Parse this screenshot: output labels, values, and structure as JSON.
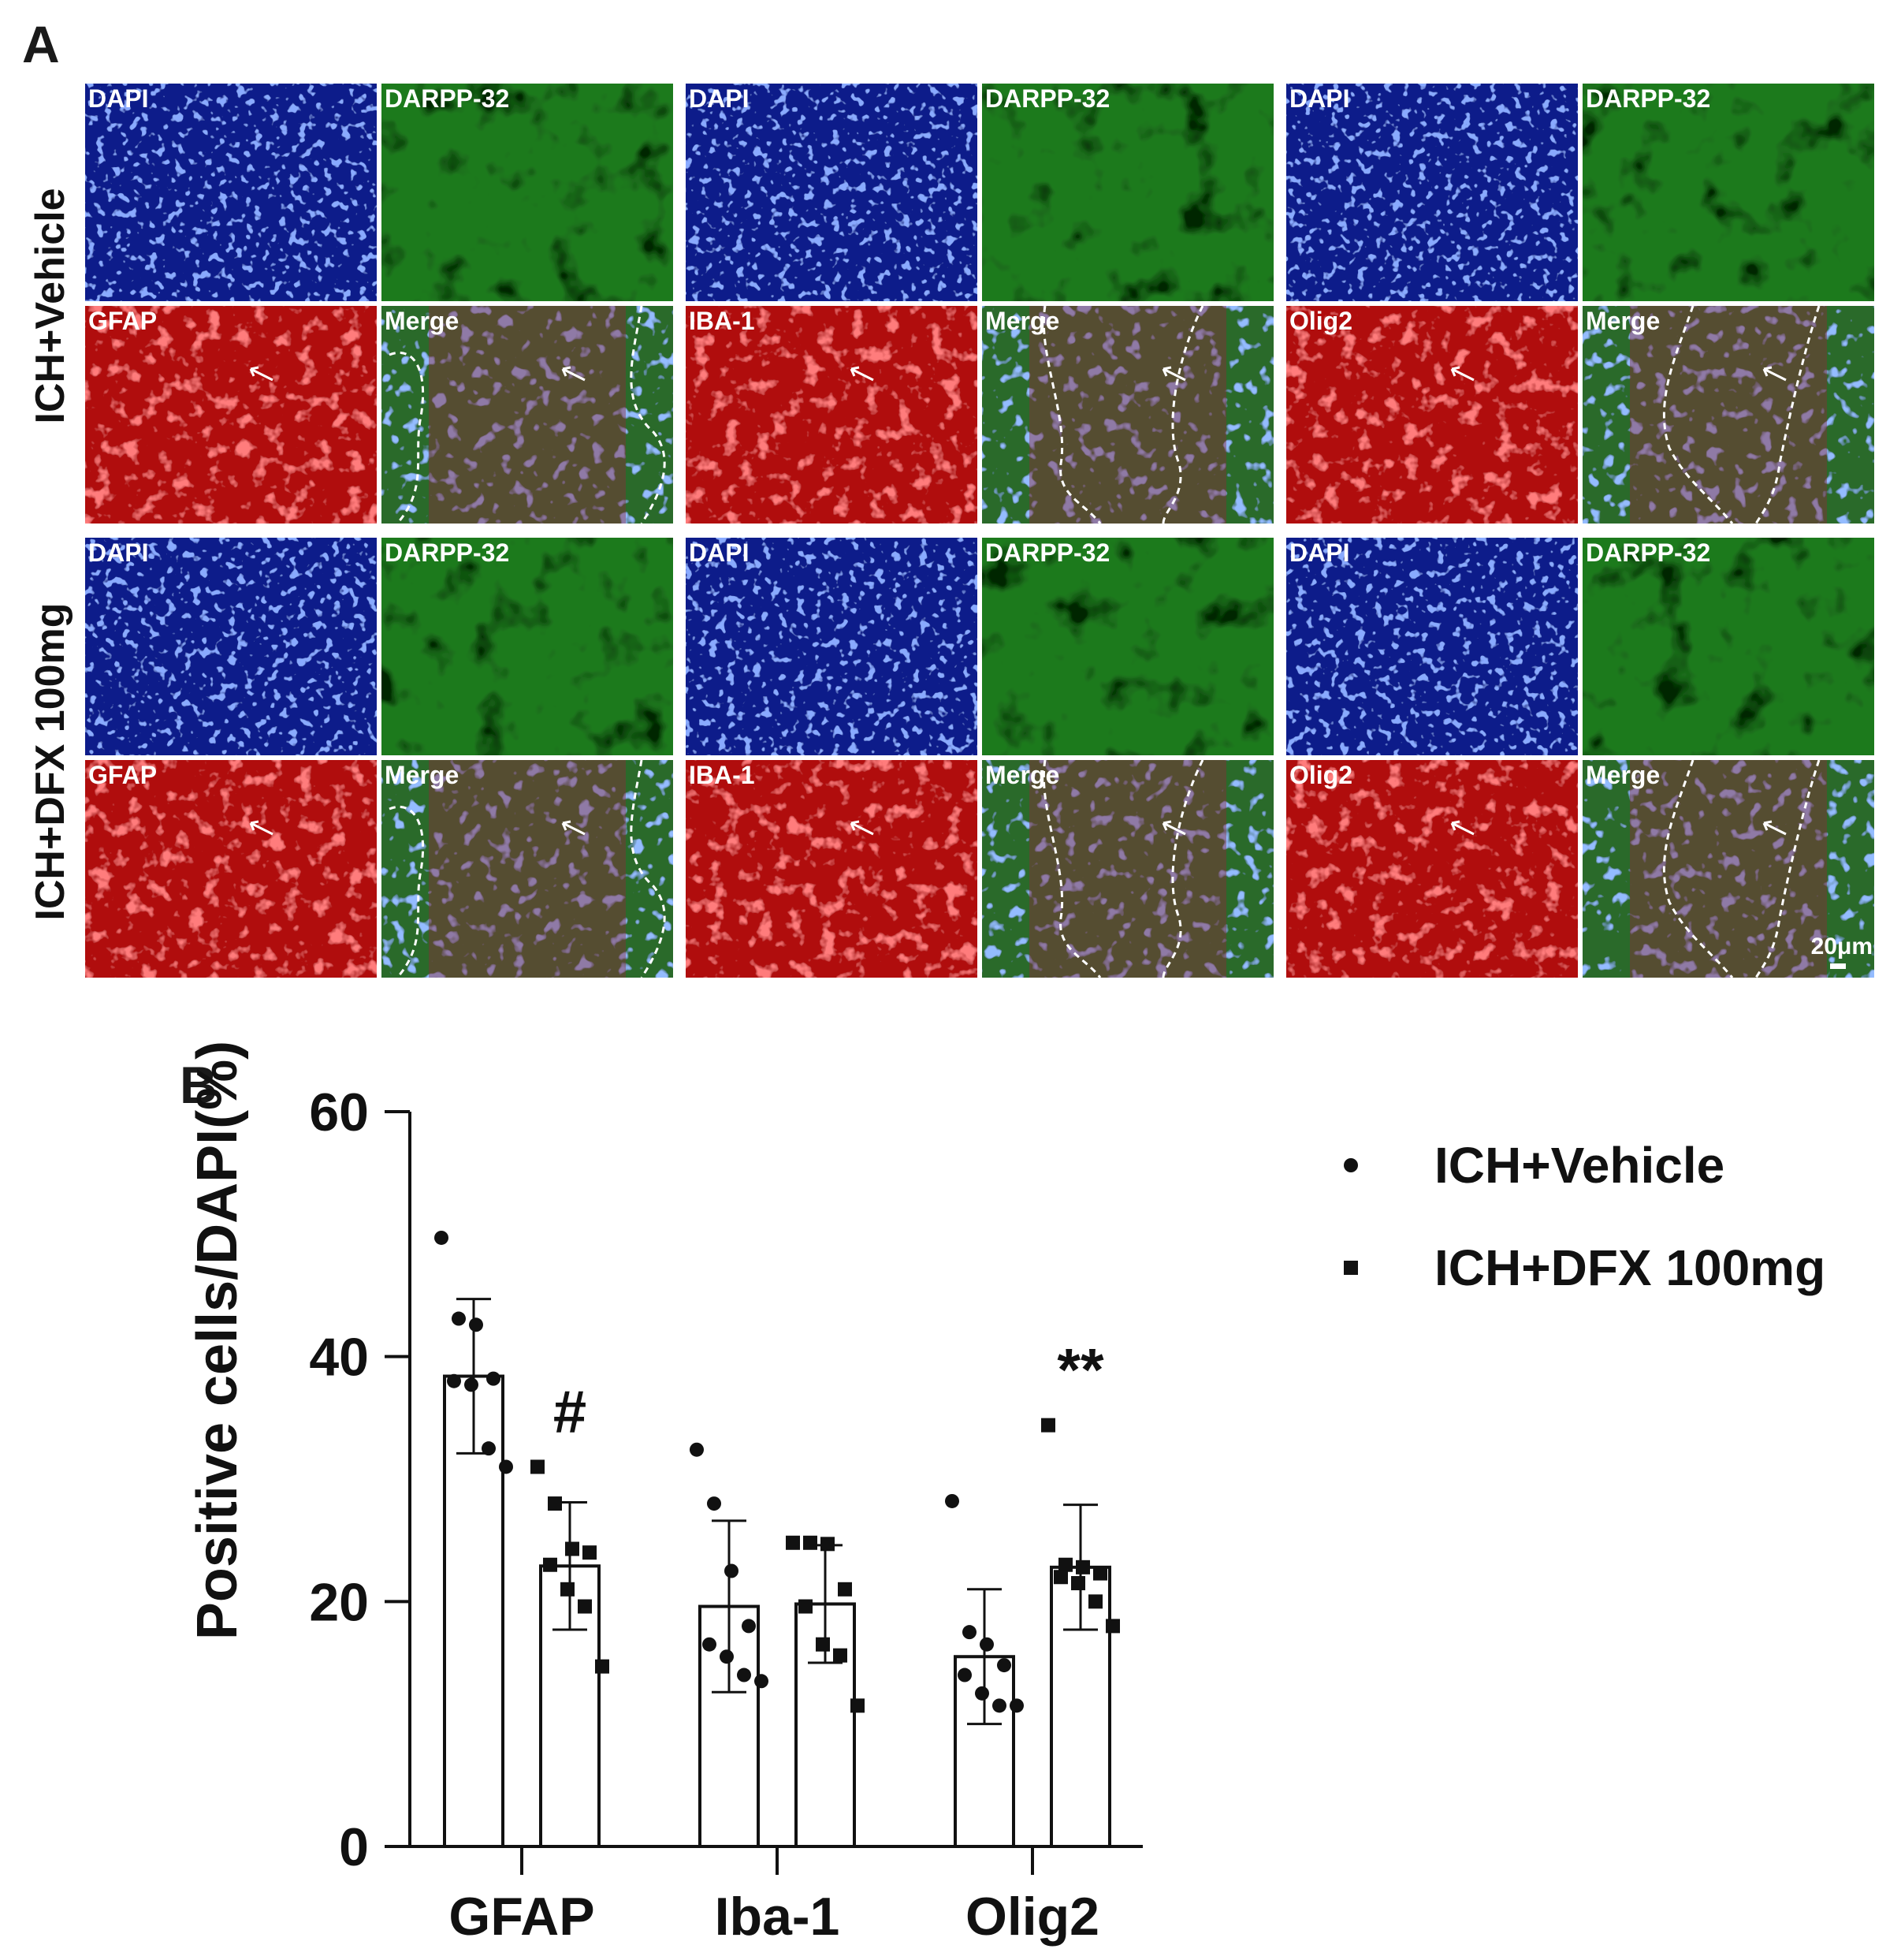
{
  "figure": {
    "panel_a_letter": "A",
    "panel_b_letter": "B",
    "row_labels": [
      "ICH+Vehicle",
      "ICH+DFX 100mg"
    ],
    "scale_bar_label": "20μm",
    "colors": {
      "dapi": "#0b1d8a",
      "darpp": "#1f7a1f",
      "red": "#b01010",
      "merge_bg": "#2b6a2b",
      "arrow": "#ffffff",
      "outline": "#ffffff"
    },
    "micrograph_rows": [
      {
        "group": "ICH+Vehicle",
        "blocks": [
          {
            "top_left": "DAPI",
            "top_right": "DARPP-32",
            "bottom_left": "GFAP",
            "bottom_right": "Merge"
          },
          {
            "top_left": "DAPI",
            "top_right": "DARPP-32",
            "bottom_left": "IBA-1",
            "bottom_right": "Merge"
          },
          {
            "top_left": "DAPI",
            "top_right": "DARPP-32",
            "bottom_left": "Olig2",
            "bottom_right": "Merge"
          }
        ]
      },
      {
        "group": "ICH+DFX 100mg",
        "blocks": [
          {
            "top_left": "DAPI",
            "top_right": "DARPP-32",
            "bottom_left": "GFAP",
            "bottom_right": "Merge"
          },
          {
            "top_left": "DAPI",
            "top_right": "DARPP-32",
            "bottom_left": "IBA-1",
            "bottom_right": "Merge"
          },
          {
            "top_left": "DAPI",
            "top_right": "DARPP-32",
            "bottom_left": "Olig2",
            "bottom_right": "Merge"
          }
        ]
      }
    ]
  },
  "chart_data": {
    "type": "bar",
    "title": "",
    "xlabel": "",
    "ylabel": "Positive cells/DAPI(%)",
    "ylim": [
      0,
      60
    ],
    "yticks": [
      0,
      20,
      40,
      60
    ],
    "categories": [
      "GFAP",
      "Iba-1",
      "Olig2"
    ],
    "legend_position": "top-right",
    "grid": false,
    "series": [
      {
        "name": "ICH+Vehicle",
        "marker": "circle",
        "values": [
          38.4,
          19.6,
          15.5
        ],
        "sd": [
          6.3,
          7.0,
          5.5
        ],
        "points": [
          [
            49.7,
            43.1,
            42.6,
            38.2,
            38.0,
            37.7,
            32.5,
            31.0
          ],
          [
            32.4,
            28.0,
            22.5,
            18.0,
            16.5,
            15.5,
            14.0,
            13.5
          ],
          [
            28.2,
            17.5,
            16.5,
            14.8,
            14.0,
            12.5,
            11.5,
            11.5
          ]
        ]
      },
      {
        "name": "ICH+DFX 100mg",
        "marker": "square",
        "values": [
          22.9,
          19.8,
          22.8
        ],
        "sd": [
          5.2,
          4.8,
          5.1
        ],
        "points": [
          [
            31.0,
            28.0,
            24.3,
            24.0,
            23.0,
            21.0,
            19.6,
            14.7
          ],
          [
            24.8,
            24.8,
            24.7,
            21.0,
            19.6,
            16.5,
            15.6,
            11.5
          ],
          [
            34.4,
            23.0,
            22.8,
            22.3,
            22.0,
            21.5,
            20.0,
            18.0
          ]
        ]
      }
    ],
    "annotations": [
      {
        "category": "GFAP",
        "series": "ICH+DFX 100mg",
        "text": "#"
      },
      {
        "category": "Olig2",
        "series": "ICH+DFX 100mg",
        "text": "**"
      }
    ]
  }
}
